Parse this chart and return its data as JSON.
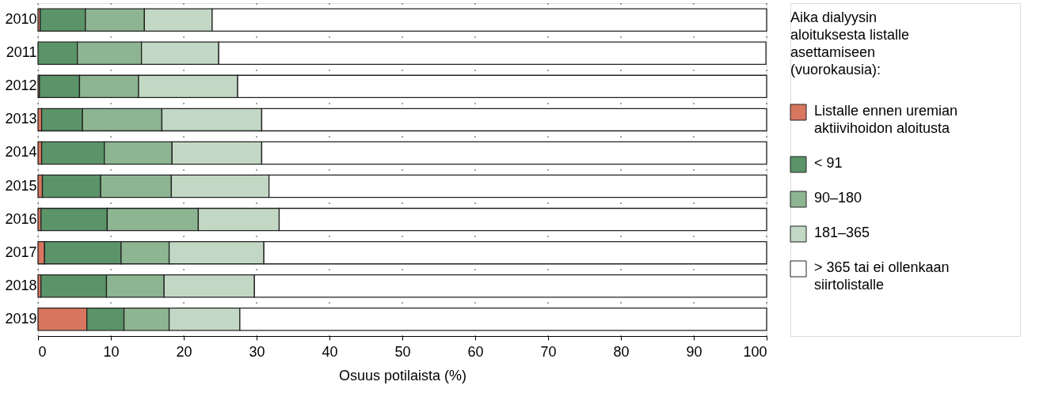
{
  "chart_data": {
    "type": "bar",
    "orientation": "horizontal",
    "stacked": true,
    "categories": [
      "2010",
      "2011",
      "2012",
      "2013",
      "2014",
      "2015",
      "2016",
      "2017",
      "2018",
      "2019"
    ],
    "series": [
      {
        "name": "Listalle ennen uremian aktiivihoidon aloitusta",
        "color": "#d87660",
        "values": [
          0.3,
          null,
          0.2,
          0.5,
          0.5,
          0.6,
          0.4,
          0.9,
          0.4,
          6.7
        ]
      },
      {
        "name": "< 91",
        "color": "#5a9468",
        "values": [
          6.2,
          5.4,
          5.5,
          5.6,
          8.6,
          8.0,
          9.1,
          10.5,
          9.0,
          5.1
        ]
      },
      {
        "name": "90–180",
        "color": "#8db591",
        "values": [
          8.1,
          8.8,
          8.1,
          10.9,
          9.3,
          9.7,
          12.5,
          6.6,
          7.9,
          6.2
        ]
      },
      {
        "name": "181–365",
        "color": "#c2d8c4",
        "values": [
          9.3,
          10.6,
          13.6,
          13.7,
          12.3,
          13.4,
          11.1,
          13.0,
          12.4,
          9.7
        ]
      },
      {
        "name": "> 365 tai ei ollenkaan siirtolistalle",
        "color": "#ffffff",
        "values": [
          76.1,
          75.1,
          72.6,
          69.3,
          69.3,
          68.3,
          66.9,
          69.0,
          70.3,
          72.3
        ]
      }
    ],
    "xlabel": "Osuus potilaista (%)",
    "legend_title": "Aika dialyysin aloituksesta listalle asettamiseen (vuorokausia):",
    "xlim": [
      0,
      100
    ],
    "xticks": [
      0,
      10,
      20,
      30,
      40,
      50,
      60,
      70,
      80,
      90,
      100
    ],
    "grid": "x",
    "legend": "right"
  }
}
